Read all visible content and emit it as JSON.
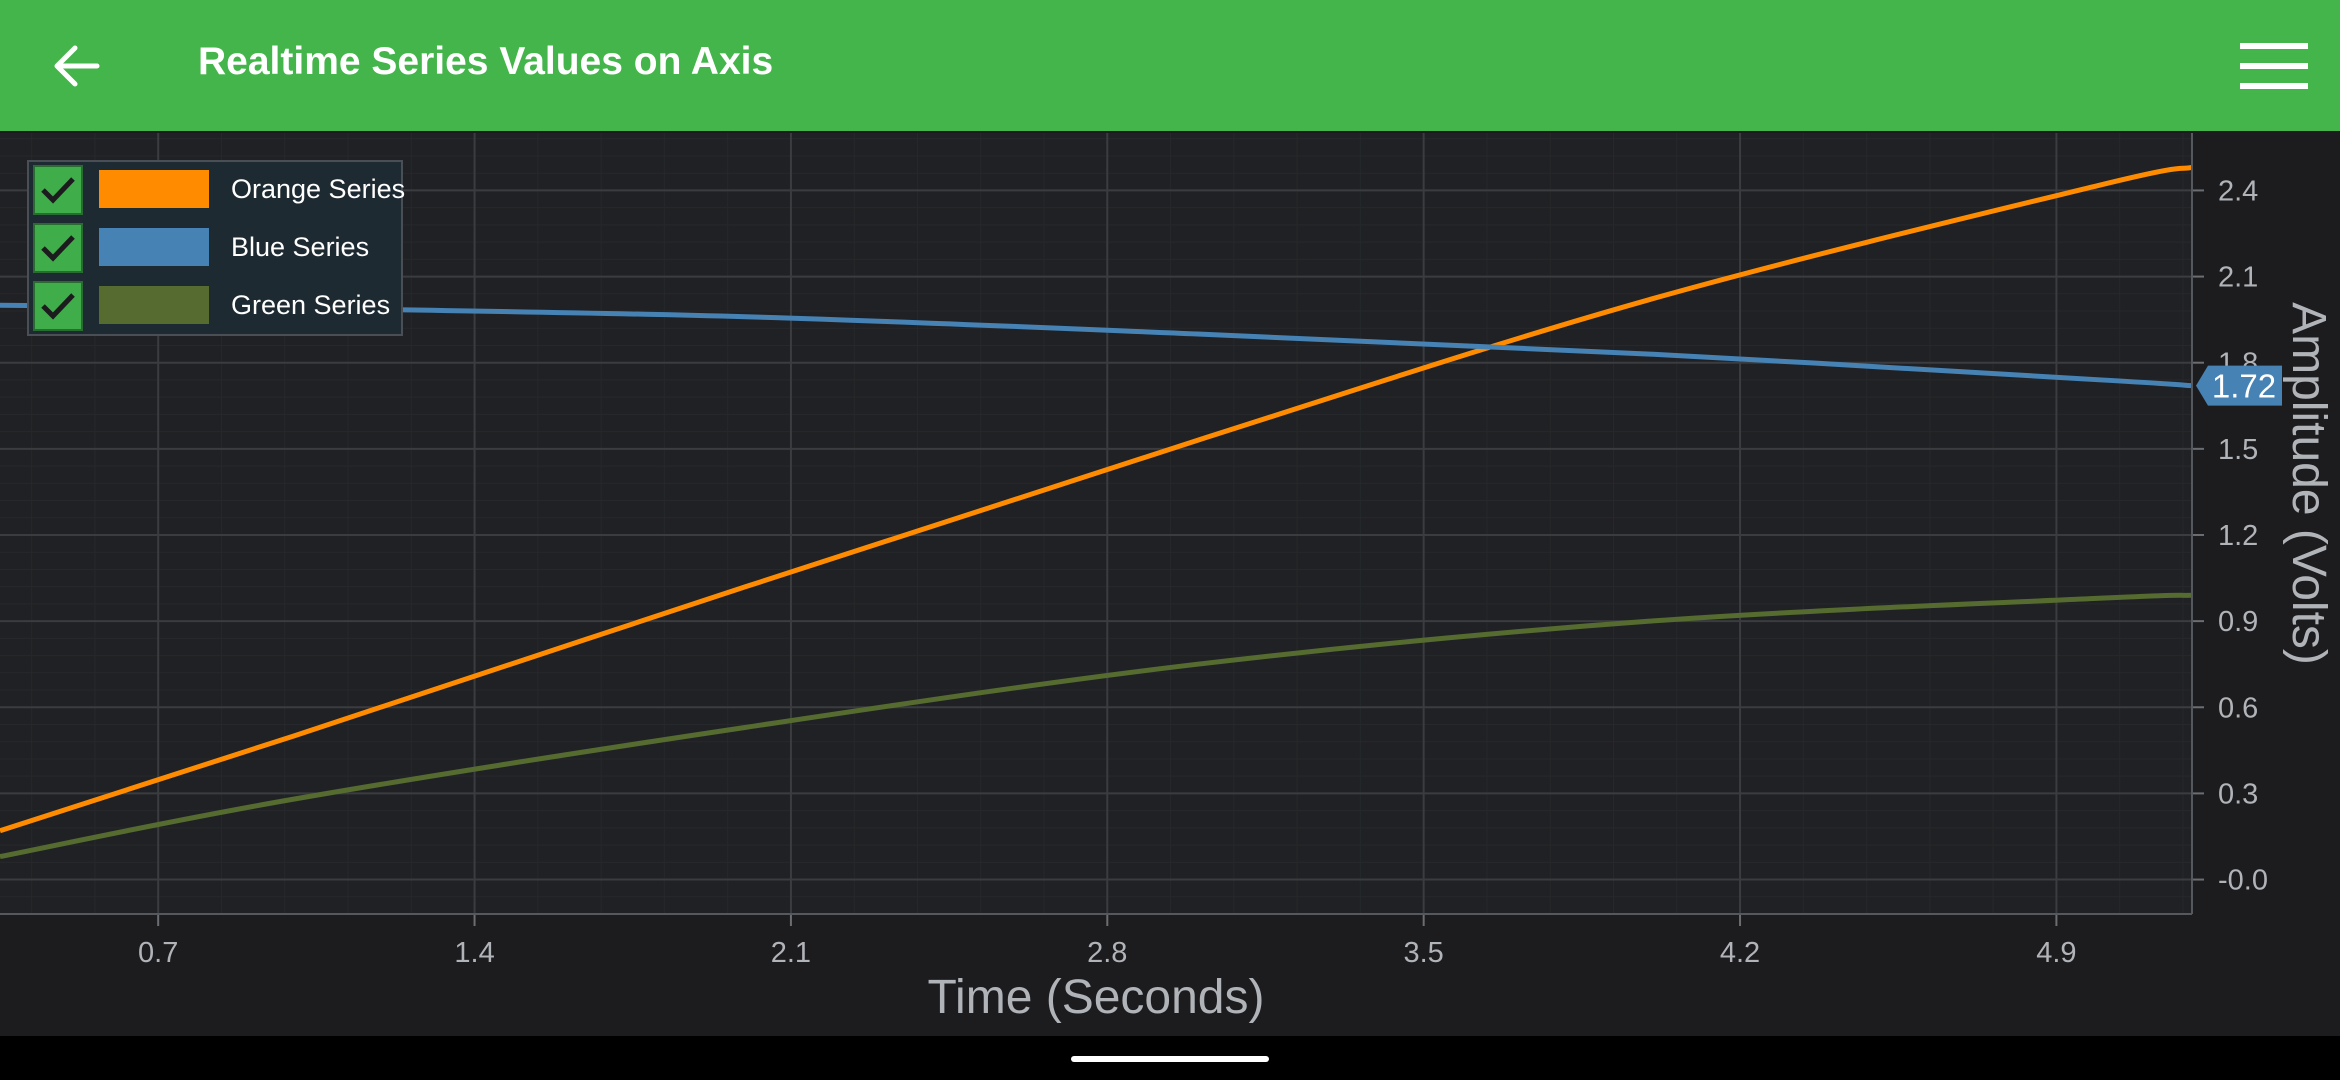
{
  "app_bar": {
    "title": "Realtime Series Values on Axis",
    "back_icon": "arrow-left-icon",
    "menu_icon": "hamburger-menu-icon",
    "color": "#43b54a"
  },
  "legend": {
    "items": [
      {
        "label": "Orange Series",
        "color": "#ff8c00",
        "checked": true
      },
      {
        "label": "Blue Series",
        "color": "#4682b4",
        "checked": true
      },
      {
        "label": "Green Series",
        "color": "#556b2f",
        "checked": true
      }
    ]
  },
  "chart_data": {
    "type": "line",
    "xlabel": "Time (Seconds)",
    "ylabel": "Amplitude (Volts)",
    "xlim": [
      0.35,
      5.2
    ],
    "ylim": [
      -0.12,
      2.6
    ],
    "x_ticks": [
      "0.7",
      "1.4",
      "2.1",
      "2.8",
      "3.5",
      "4.2",
      "4.9"
    ],
    "y_ticks": [
      "-0.0",
      "0.3",
      "0.6",
      "0.9",
      "1.2",
      "1.5",
      "1.8",
      "2.1",
      "2.4"
    ],
    "grid": true,
    "series": [
      {
        "name": "Orange Series",
        "color": "#ff8c00",
        "x": [
          0.35,
          1.0,
          2.0,
          3.0,
          4.0,
          5.0,
          5.2
        ],
        "y": [
          0.17,
          0.5,
          1.02,
          1.53,
          2.02,
          2.42,
          2.48
        ]
      },
      {
        "name": "Blue Series",
        "color": "#4682b4",
        "x": [
          0.35,
          1.0,
          2.0,
          3.0,
          4.0,
          5.0,
          5.2
        ],
        "y": [
          2.0,
          1.99,
          1.96,
          1.9,
          1.83,
          1.74,
          1.72
        ]
      },
      {
        "name": "Green Series",
        "color": "#556b2f",
        "x": [
          0.35,
          1.0,
          2.0,
          3.0,
          4.0,
          5.0,
          5.2
        ],
        "y": [
          0.08,
          0.28,
          0.53,
          0.75,
          0.9,
          0.98,
          0.99
        ]
      }
    ],
    "axis_marker": {
      "series": "Blue Series",
      "label": "1.72",
      "value": 1.72,
      "color": "#4682b4"
    },
    "background": "#1c1c1e",
    "grid_color": "#3a3c40"
  }
}
